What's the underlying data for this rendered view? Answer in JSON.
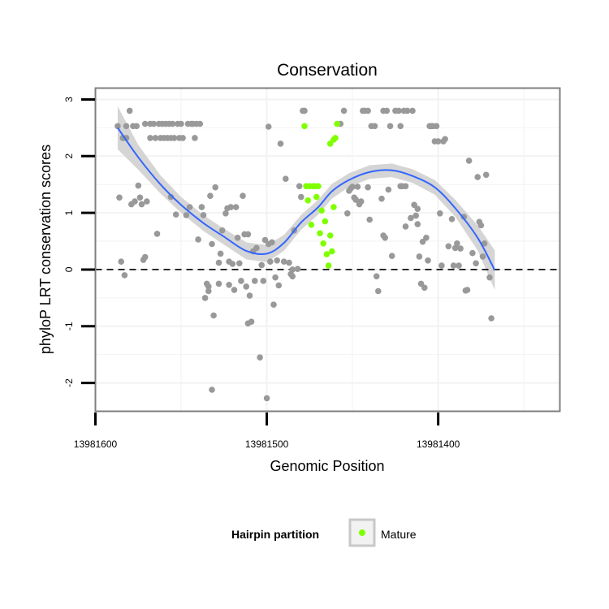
{
  "chart_data": {
    "type": "scatter",
    "title": "Conservation",
    "xlabel": "Genomic Position",
    "ylabel": "phyloP LRT conservation scores",
    "xlim": [
      13981600,
      13981329
    ],
    "x_reversed": true,
    "ylim": [
      -2.5,
      3.2
    ],
    "xticks": [
      13981600,
      13981500,
      13981400
    ],
    "yticks": [
      -2,
      -1,
      0,
      1,
      2,
      3
    ],
    "reference_line": {
      "y": 0,
      "style": "dashed"
    },
    "grid": true,
    "colors": {
      "background_points": "#999999",
      "mature": "#7fff00",
      "smooth": "#3366ff",
      "ribbon": "#d3d3d3",
      "panel_border": "#7f7f7f"
    },
    "series": [
      {
        "role": "background",
        "points": [
          [
            13981587,
            2.53
          ],
          [
            13981586,
            1.27
          ],
          [
            13981585,
            0.14
          ],
          [
            13981584,
            2.32
          ],
          [
            13981583,
            -0.1
          ],
          [
            13981582,
            2.32
          ],
          [
            13981582,
            2.53
          ],
          [
            13981580,
            2.8
          ],
          [
            13981578,
            2.53
          ],
          [
            13981579,
            1.15
          ],
          [
            13981577,
            1.2
          ],
          [
            13981576,
            2.53
          ],
          [
            13981575,
            1.48
          ],
          [
            13981574,
            1.27
          ],
          [
            13981573,
            1.15
          ],
          [
            13981572,
            0.17
          ],
          [
            13981571,
            0.22
          ],
          [
            13981570,
            1.2
          ],
          [
            13981571,
            2.57
          ],
          [
            13981568,
            2.57
          ],
          [
            13981568,
            2.32
          ],
          [
            13981566,
            2.57
          ],
          [
            13981565,
            2.32
          ],
          [
            13981564,
            0.63
          ],
          [
            13981563,
            2.57
          ],
          [
            13981562,
            2.32
          ],
          [
            13981561,
            2.57
          ],
          [
            13981560,
            2.32
          ],
          [
            13981559,
            2.57
          ],
          [
            13981558,
            2.32
          ],
          [
            13981557,
            2.57
          ],
          [
            13981556,
            1.28
          ],
          [
            13981556,
            2.32
          ],
          [
            13981555,
            2.57
          ],
          [
            13981554,
            2.32
          ],
          [
            13981553,
            0.97
          ],
          [
            13981552,
            2.57
          ],
          [
            13981551,
            2.32
          ],
          [
            13981550,
            2.57
          ],
          [
            13981549,
            2.32
          ],
          [
            13981547,
            0.96
          ],
          [
            13981546,
            2.57
          ],
          [
            13981545,
            1.1
          ],
          [
            13981544,
            2.57
          ],
          [
            13981543,
            2.57
          ],
          [
            13981542,
            2.32
          ],
          [
            13981541,
            2.57
          ],
          [
            13981540,
            0.53
          ],
          [
            13981539,
            2.57
          ],
          [
            13981538,
            1.1
          ],
          [
            13981537,
            0.96
          ],
          [
            13981536,
            -0.5
          ],
          [
            13981535,
            -0.25
          ],
          [
            13981534,
            -0.38
          ],
          [
            13981534,
            -0.3
          ],
          [
            13981533,
            1.3
          ],
          [
            13981532,
            -2.12
          ],
          [
            13981532,
            0.45
          ],
          [
            13981531,
            -0.81
          ],
          [
            13981530,
            1.45
          ],
          [
            13981528,
            -0.25
          ],
          [
            13981528,
            0.12
          ],
          [
            13981527,
            0.28
          ],
          [
            13981526,
            0.69
          ],
          [
            13981524,
            0.99
          ],
          [
            13981523,
            1.08
          ],
          [
            13981522,
            0.14
          ],
          [
            13981522,
            -0.27
          ],
          [
            13981521,
            1.1
          ],
          [
            13981520,
            0.1
          ],
          [
            13981519,
            -0.36
          ],
          [
            13981518,
            1.1
          ],
          [
            13981517,
            0.56
          ],
          [
            13981516,
            0.11
          ],
          [
            13981515,
            -0.2
          ],
          [
            13981514,
            1.3
          ],
          [
            13981513,
            0.62
          ],
          [
            13981512,
            -0.3
          ],
          [
            13981511,
            0.62
          ],
          [
            13981511,
            -0.95
          ],
          [
            13981510,
            -0.46
          ],
          [
            13981509,
            -0.92
          ],
          [
            13981508,
            0.32
          ],
          [
            13981507,
            -0.2
          ],
          [
            13981506,
            0.38
          ],
          [
            13981504,
            -1.55
          ],
          [
            13981503,
            0.08
          ],
          [
            13981502,
            -0.2
          ],
          [
            13981501,
            0.52
          ],
          [
            13981500,
            -2.27
          ],
          [
            13981499,
            0.45
          ],
          [
            13981499,
            2.52
          ],
          [
            13981498,
            0.14
          ],
          [
            13981497,
            0.48
          ],
          [
            13981496,
            -0.62
          ],
          [
            13981495,
            -0.14
          ],
          [
            13981494,
            0.16
          ],
          [
            13981493,
            -0.28
          ],
          [
            13981492,
            2.22
          ],
          [
            13981490,
            0.14
          ],
          [
            13981489,
            1.6
          ],
          [
            13981487,
            0.12
          ],
          [
            13981486,
            -0.08
          ],
          [
            13981485,
            -0.12
          ],
          [
            13981485,
            0.0
          ],
          [
            13981484,
            0.69
          ],
          [
            13981482,
            0.01
          ],
          [
            13981481,
            1.47
          ],
          [
            13981480,
            1.28
          ],
          [
            13981479,
            2.8
          ],
          [
            13981478,
            2.8
          ],
          [
            13981457,
            2.57
          ],
          [
            13981455,
            2.8
          ],
          [
            13981453,
            0.99
          ],
          [
            13981452,
            1.39
          ],
          [
            13981451,
            1.43
          ],
          [
            13981450,
            1.46
          ],
          [
            13981449,
            1.27
          ],
          [
            13981448,
            1.23
          ],
          [
            13981447,
            1.46
          ],
          [
            13981446,
            1.15
          ],
          [
            13981445,
            1.2
          ],
          [
            13981444,
            2.8
          ],
          [
            13981443,
            2.8
          ],
          [
            13981441,
            2.8
          ],
          [
            13981441,
            1.45
          ],
          [
            13981440,
            0.88
          ],
          [
            13981439,
            2.53
          ],
          [
            13981437,
            2.53
          ],
          [
            13981436,
            -0.12
          ],
          [
            13981435,
            -0.38
          ],
          [
            13981433,
            1.25
          ],
          [
            13981432,
            0.6
          ],
          [
            13981432,
            2.8
          ],
          [
            13981431,
            0.56
          ],
          [
            13981430,
            2.8
          ],
          [
            13981429,
            1.41
          ],
          [
            13981428,
            2.53
          ],
          [
            13981427,
            0.24
          ],
          [
            13981425,
            2.8
          ],
          [
            13981423,
            2.8
          ],
          [
            13981422,
            1.47
          ],
          [
            13981422,
            2.53
          ],
          [
            13981421,
            1.47
          ],
          [
            13981420,
            2.8
          ],
          [
            13981419,
            0.76
          ],
          [
            13981419,
            1.47
          ],
          [
            13981418,
            2.8
          ],
          [
            13981416,
            0.91
          ],
          [
            13981415,
            2.8
          ],
          [
            13981414,
            1.14
          ],
          [
            13981413,
            0.95
          ],
          [
            13981412,
            1.07
          ],
          [
            13981412,
            0.8
          ],
          [
            13981411,
            0.23
          ],
          [
            13981410,
            -0.25
          ],
          [
            13981409,
            0.49
          ],
          [
            13981408,
            -0.32
          ],
          [
            13981407,
            0.56
          ],
          [
            13981406,
            0.16
          ],
          [
            13981405,
            2.53
          ],
          [
            13981404,
            2.53
          ],
          [
            13981403,
            2.53
          ],
          [
            13981402,
            2.26
          ],
          [
            13981401,
            2.53
          ],
          [
            13981400,
            2.26
          ],
          [
            13981399,
            0.99
          ],
          [
            13981398,
            0.07
          ],
          [
            13981397,
            2.26
          ],
          [
            13981396,
            2.3
          ],
          [
            13981394,
            0.41
          ],
          [
            13981392,
            0.89
          ],
          [
            13981391,
            0.07
          ],
          [
            13981390,
            0.38
          ],
          [
            13981389,
            0.46
          ],
          [
            13981388,
            0.07
          ],
          [
            13981387,
            0.37
          ],
          [
            13981385,
            0.93
          ],
          [
            13981384,
            -0.37
          ],
          [
            13981383,
            -0.36
          ],
          [
            13981382,
            1.92
          ],
          [
            13981380,
            0.29
          ],
          [
            13981378,
            0.11
          ],
          [
            13981377,
            1.63
          ],
          [
            13981376,
            0.84
          ],
          [
            13981375,
            0.78
          ],
          [
            13981374,
            0.23
          ],
          [
            13981373,
            0.46
          ],
          [
            13981372,
            1.67
          ],
          [
            13981370,
            -0.14
          ],
          [
            13981369,
            -0.86
          ]
        ]
      },
      {
        "name": "Mature",
        "role": "mature",
        "points": [
          [
            13981478,
            2.53
          ],
          [
            13981477,
            1.47
          ],
          [
            13981476,
            1.22
          ],
          [
            13981475,
            1.47
          ],
          [
            13981474,
            0.79
          ],
          [
            13981473,
            1.47
          ],
          [
            13981472,
            1.47
          ],
          [
            13981471,
            1.28
          ],
          [
            13981470,
            1.47
          ],
          [
            13981469,
            0.64
          ],
          [
            13981468,
            1.04
          ],
          [
            13981467,
            0.46
          ],
          [
            13981466,
            0.85
          ],
          [
            13981465,
            0.27
          ],
          [
            13981464,
            0.07
          ],
          [
            13981463,
            2.22
          ],
          [
            13981462,
            0.32
          ],
          [
            13981461,
            2.29
          ],
          [
            13981460,
            2.32
          ],
          [
            13981459,
            2.57
          ],
          [
            13981461,
            1.1
          ],
          [
            13981463,
            0.6
          ]
        ]
      }
    ],
    "smooth_curve": {
      "x": [
        13981587,
        13981575,
        13981562,
        13981550,
        13981537,
        13981525,
        13981512,
        13981500,
        13981490,
        13981480,
        13981470,
        13981462,
        13981452,
        13981440,
        13981427,
        13981415,
        13981402,
        13981390,
        13981377,
        13981367
      ],
      "y": [
        2.5,
        1.98,
        1.5,
        1.14,
        0.82,
        0.58,
        0.33,
        0.28,
        0.47,
        0.83,
        1.1,
        1.38,
        1.58,
        1.72,
        1.75,
        1.65,
        1.45,
        1.08,
        0.56,
        -0.01
      ],
      "se": [
        0.38,
        0.22,
        0.16,
        0.14,
        0.14,
        0.14,
        0.15,
        0.15,
        0.14,
        0.13,
        0.13,
        0.13,
        0.12,
        0.12,
        0.12,
        0.12,
        0.13,
        0.15,
        0.22,
        0.35
      ]
    },
    "legend": {
      "title": "Hairpin partition",
      "entries": [
        "Mature"
      ],
      "position": "bottom"
    }
  }
}
